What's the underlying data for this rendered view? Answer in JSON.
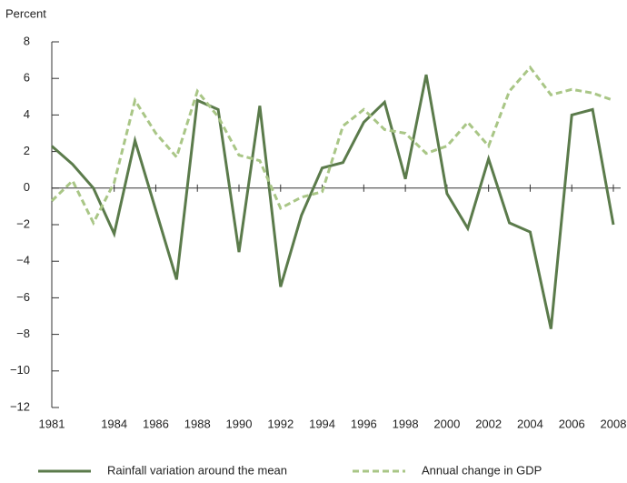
{
  "chart_data": {
    "type": "line",
    "y_axis_label": "Percent",
    "x": [
      1981,
      1982,
      1983,
      1984,
      1985,
      1986,
      1987,
      1988,
      1989,
      1990,
      1991,
      1992,
      1993,
      1994,
      1995,
      1996,
      1997,
      1998,
      1999,
      2000,
      2001,
      2002,
      2003,
      2004,
      2005,
      2006,
      2007,
      2008
    ],
    "series": [
      {
        "name": "Rainfall variation around the mean",
        "color": "#5b7b4b",
        "dash": false,
        "values": [
          2.3,
          1.3,
          0,
          -2.5,
          2.6,
          -1.2,
          -5.0,
          4.8,
          4.3,
          -3.5,
          4.5,
          -5.4,
          -1.5,
          1.1,
          1.4,
          3.6,
          4.7,
          0.5,
          6.2,
          -0.3,
          -2.2,
          1.6,
          -1.9,
          -2.4,
          -7.7,
          4.0,
          4.3,
          -2.0
        ]
      },
      {
        "name": "Annual change in GDP",
        "color": "#a9c686",
        "dash": true,
        "values": [
          -0.7,
          0.4,
          -1.9,
          0.3,
          4.8,
          3.0,
          1.7,
          5.3,
          3.9,
          1.8,
          1.5,
          -1.1,
          -0.5,
          -0.2,
          3.4,
          4.3,
          3.2,
          3.0,
          1.9,
          2.3,
          3.6,
          2.3,
          5.3,
          6.6,
          5.1,
          5.4,
          5.2,
          4.8
        ]
      }
    ],
    "xlim": [
      1981,
      2008
    ],
    "xticks": [
      1981,
      1984,
      1986,
      1988,
      1990,
      1992,
      1994,
      1996,
      1998,
      2000,
      2002,
      2004,
      2006,
      2008
    ],
    "ylim": [
      -12,
      8
    ],
    "yticks": [
      8,
      6,
      4,
      2,
      0,
      {
        "value": -2,
        "label": "−2"
      },
      {
        "value": -4,
        "label": "−4"
      },
      {
        "value": -6,
        "label": "−6"
      },
      {
        "value": -8,
        "label": "−8"
      },
      {
        "value": -10,
        "label": "−10"
      },
      {
        "value": -12,
        "label": "−12"
      }
    ]
  }
}
